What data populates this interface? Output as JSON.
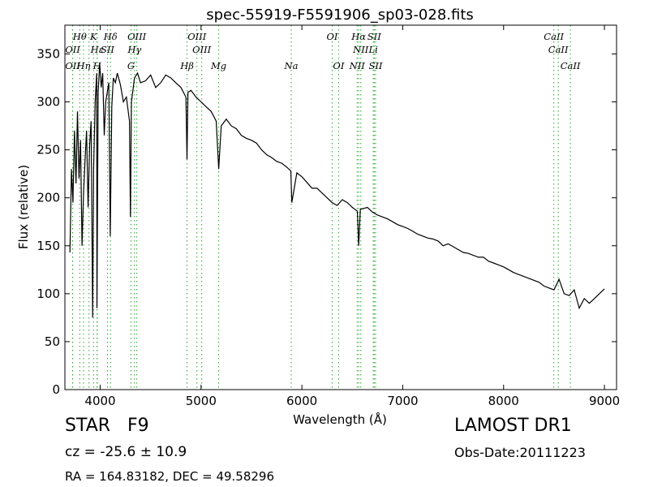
{
  "chart_data": {
    "type": "line",
    "title": "spec-55919-F5591906_sp03-028.fits",
    "xlabel": "Wavelength (Å)",
    "ylabel": "Flux (relative)",
    "xlim": [
      3650,
      9120
    ],
    "ylim": [
      0,
      380
    ],
    "xticks": [
      "4000",
      "5000",
      "6000",
      "7000",
      "8000",
      "9000"
    ],
    "yticks": [
      "0",
      "50",
      "100",
      "150",
      "200",
      "250",
      "300",
      "350"
    ],
    "grid": false,
    "series": [
      {
        "color": "#000000",
        "x": [
          3700,
          3715,
          3730,
          3745,
          3760,
          3775,
          3790,
          3805,
          3820,
          3835,
          3850,
          3865,
          3880,
          3895,
          3910,
          3925,
          3935,
          3950,
          3965,
          3968,
          3980,
          3995,
          4010,
          4025,
          4040,
          4055,
          4070,
          4085,
          4100,
          4115,
          4130,
          4150,
          4170,
          4200,
          4230,
          4260,
          4290,
          4300,
          4310,
          4340,
          4370,
          4400,
          4450,
          4500,
          4550,
          4600,
          4650,
          4700,
          4750,
          4800,
          4850,
          4861,
          4870,
          4900,
          4950,
          5000,
          5050,
          5100,
          5150,
          5175,
          5200,
          5250,
          5300,
          5350,
          5400,
          5450,
          5500,
          5550,
          5600,
          5650,
          5700,
          5750,
          5800,
          5850,
          5890,
          5900,
          5950,
          6000,
          6050,
          6100,
          6150,
          6200,
          6250,
          6300,
          6350,
          6400,
          6450,
          6500,
          6550,
          6563,
          6580,
          6650,
          6700,
          6750,
          6800,
          6850,
          6900,
          6950,
          7000,
          7050,
          7100,
          7150,
          7200,
          7250,
          7300,
          7350,
          7400,
          7450,
          7500,
          7550,
          7600,
          7650,
          7700,
          7750,
          7800,
          7850,
          7900,
          7950,
          8000,
          8050,
          8100,
          8150,
          8200,
          8250,
          8300,
          8350,
          8400,
          8450,
          8500,
          8550,
          8600,
          8650,
          8700,
          8750,
          8800,
          8850,
          8900,
          8950,
          9000
        ],
        "y": [
          143,
          230,
          195,
          270,
          215,
          290,
          220,
          260,
          150,
          205,
          240,
          270,
          190,
          255,
          280,
          75,
          230,
          300,
          330,
          85,
          310,
          340,
          315,
          330,
          265,
          300,
          310,
          320,
          160,
          295,
          325,
          320,
          330,
          318,
          300,
          305,
          280,
          180,
          300,
          325,
          330,
          320,
          322,
          328,
          315,
          320,
          328,
          325,
          320,
          315,
          305,
          240,
          310,
          312,
          305,
          300,
          295,
          290,
          280,
          230,
          275,
          282,
          275,
          272,
          265,
          262,
          260,
          257,
          250,
          245,
          242,
          238,
          236,
          232,
          228,
          195,
          226,
          222,
          216,
          210,
          210,
          205,
          200,
          195,
          192,
          198,
          195,
          190,
          186,
          150,
          188,
          190,
          185,
          182,
          180,
          178,
          175,
          172,
          170,
          168,
          165,
          162,
          160,
          158,
          157,
          155,
          150,
          152,
          149,
          146,
          143,
          142,
          140,
          138,
          138,
          134,
          132,
          130,
          128,
          125,
          122,
          120,
          118,
          116,
          114,
          112,
          108,
          106,
          104,
          115,
          100,
          98,
          104,
          85,
          95,
          90,
          95,
          100,
          105
        ]
      }
    ],
    "annotation_lines": [
      {
        "label": "Hθ",
        "wavelength": 3797,
        "tier": 1
      },
      {
        "label": "K",
        "wavelength": 3934,
        "tier": 1
      },
      {
        "label": "Hδ",
        "wavelength": 4102,
        "tier": 1
      },
      {
        "label": "OIII",
        "wavelength": 4363,
        "tier": 1
      },
      {
        "label": "OIII",
        "wavelength": 4959,
        "tier": 1
      },
      {
        "label": "OI",
        "wavelength": 6300,
        "tier": 1
      },
      {
        "label": "Hα",
        "wavelength": 6563,
        "tier": 1
      },
      {
        "label": "SII",
        "wavelength": 6717,
        "tier": 1
      },
      {
        "label": "CaII",
        "wavelength": 8498,
        "tier": 1
      },
      {
        "label": "Hγ",
        "wavelength": 4340,
        "tier": 2
      },
      {
        "label": "OII",
        "wavelength": 3727,
        "tier": 2
      },
      {
        "label": "Hε",
        "wavelength": 3970,
        "tier": 2
      },
      {
        "label": "SII",
        "wavelength": 4072,
        "tier": 2
      },
      {
        "label": "OIII",
        "wavelength": 5007,
        "tier": 2
      },
      {
        "label": "NII",
        "wavelength": 6584,
        "tier": 2
      },
      {
        "label": "Li",
        "wavelength": 6708,
        "tier": 2
      },
      {
        "label": "CaII",
        "wavelength": 8542,
        "tier": 2
      },
      {
        "label": "Hη",
        "wavelength": 3835,
        "tier": 3
      },
      {
        "label": "H",
        "wavelength": 3969,
        "tier": 3
      },
      {
        "label": "G",
        "wavelength": 4305,
        "tier": 3
      },
      {
        "label": "Hβ",
        "wavelength": 4861,
        "tier": 3
      },
      {
        "label": "Mg",
        "wavelength": 5175,
        "tier": 3
      },
      {
        "label": "Na",
        "wavelength": 5894,
        "tier": 3
      },
      {
        "label": "OI",
        "wavelength": 6364,
        "tier": 3
      },
      {
        "label": "NII",
        "wavelength": 6548,
        "tier": 3
      },
      {
        "label": "SII",
        "wavelength": 6731,
        "tier": 3
      },
      {
        "label": "CaII",
        "wavelength": 8662,
        "tier": 3
      },
      {
        "label": "OII",
        "wavelength": 3727,
        "tier": 3
      },
      {
        "label": "Hζ",
        "wavelength": 3889,
        "tier": 0
      }
    ],
    "annotation_line_color": "#2ca02c"
  },
  "info": {
    "object_type": "STAR   F9",
    "cz": "cz = -25.6 ± 10.9",
    "radec": "RA = 164.83182, DEC = 49.58296",
    "survey": "LAMOST DR1",
    "obs_date": "Obs-Date:20111223"
  }
}
